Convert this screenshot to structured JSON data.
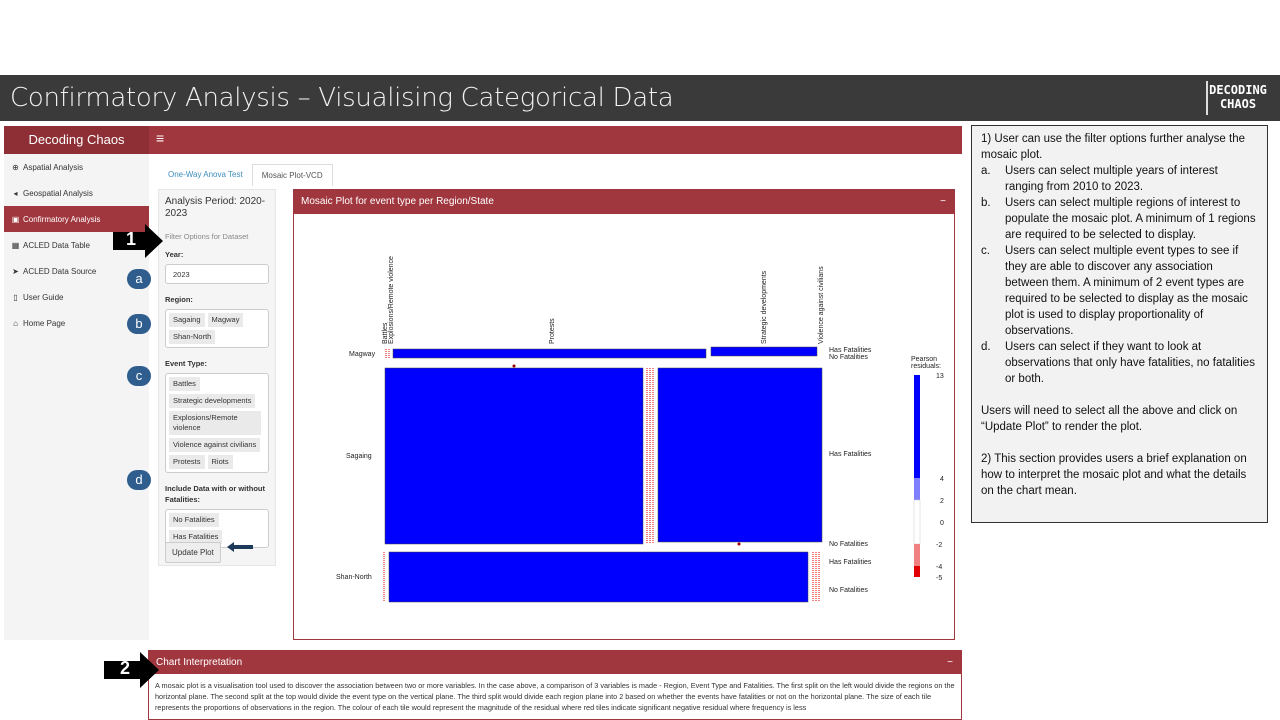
{
  "slide": {
    "title": "Confirmatory Analysis – Visualising Categorical Data",
    "logo_line1": "DECODING",
    "logo_line2": "CHAOS"
  },
  "app": {
    "brand": "Decoding Chaos",
    "menu_icon": "hamburger-icon",
    "sidebar": [
      {
        "label": "Aspatial Analysis",
        "icon": "globe-icon"
      },
      {
        "label": "Geospatial Analysis",
        "icon": "location-arrow-icon"
      },
      {
        "label": "Confirmatory Analysis",
        "icon": "clipboard-icon"
      },
      {
        "label": "ACLED Data Table",
        "icon": "table-icon"
      },
      {
        "label": "ACLED Data Source",
        "icon": "send-icon"
      },
      {
        "label": "User Guide",
        "icon": "file-icon"
      },
      {
        "label": "Home Page",
        "icon": "home-icon"
      }
    ],
    "tabs": [
      "One-Way Anova Test",
      "Mosaic Plot-VCD"
    ],
    "filters": {
      "title": "Analysis Period: 2020-2023",
      "subtitle": "Filter Options for Dataset",
      "year_label": "Year:",
      "year_value": "2023",
      "region_label": "Region:",
      "regions": [
        "Sagaing",
        "Magway",
        "Shan-North"
      ],
      "event_label": "Event Type:",
      "events": [
        "Battles",
        "Strategic developments",
        "Explosions/Remote violence",
        "Violence against civilians",
        "Protests",
        "Riots"
      ],
      "fatal_label": "Include Data with or without Fatalities:",
      "fatal_options": [
        "No Fatalities",
        "Has Fatalities"
      ],
      "update_button": "Update Plot"
    },
    "plot": {
      "title": "Mosaic Plot for event type per Region/State",
      "minimize": "−"
    },
    "interpretation": {
      "title": "Chart Interpretation",
      "minimize": "−",
      "text": "A mosaic plot is a visualisation tool used to discover the association between two or more variables. In the case above, a comparison of 3 variables is made - Region, Event Type and Fatalities. The first split on the left would divide the regions on the horizontal plane. The second split at the top would divide the event type on the vertical plane. The third split would divide each region plane into 2 based on whether the events have fatalities or not on the horizontal plane. The size of each tile represents the proportions of observations in the region. The colour of each tile would represent the magnitude of the residual where red tiles indicate significant negative residual where frequency is less"
    }
  },
  "chart_data": {
    "type": "mosaic",
    "title": "Mosaic Plot for event type per Region/State",
    "top_labels": [
      "Battles",
      "Explosions/Remote violence",
      "Protests",
      "Strategic developments",
      "Violence against civilians"
    ],
    "row_labels": [
      "Magway",
      "Sagaing",
      "Shan-North"
    ],
    "fatality_labels": [
      "Has Fatalities",
      "No Fatalities"
    ],
    "legend": {
      "title": "Pearson residuals:",
      "ticks": [
        "13",
        "4",
        "2",
        "0",
        "-2",
        "-4",
        "-5"
      ]
    },
    "colors": {
      "high": "#0000ff",
      "mid_high": "#8080ff",
      "neutral": "#ffffff",
      "mid_low": "#f08080",
      "low": "#e00000"
    }
  },
  "notes": {
    "intro": "1) User can use the filter options further analyse the mosaic plot.",
    "items": [
      {
        "letter": "a.",
        "text": "Users can select multiple years of interest ranging from 2010 to 2023."
      },
      {
        "letter": "b.",
        "text": "Users can select multiple regions of interest to populate the mosaic plot. A minimum of 1 regions are required to be selected to display."
      },
      {
        "letter": "c.",
        "text": "Users can select multiple event types to see if they are able to discover any association between them. A minimum of 2 event types are required to be selected to display as the mosaic plot is used to display proportionality of observations."
      },
      {
        "letter": "d.",
        "text": "Users can select if they want to look at observations that only have fatalities, no fatalities or both."
      }
    ],
    "update_note": "Users will need to select all the above and click on “Update Plot” to render the plot.",
    "section2": "2) This section provides users a brief explanation on how to interpret the mosaic plot and what the details on the chart mean."
  },
  "annotations": {
    "arrow1": "1",
    "arrow2": "2",
    "circles": [
      "a",
      "b",
      "c",
      "d"
    ]
  }
}
